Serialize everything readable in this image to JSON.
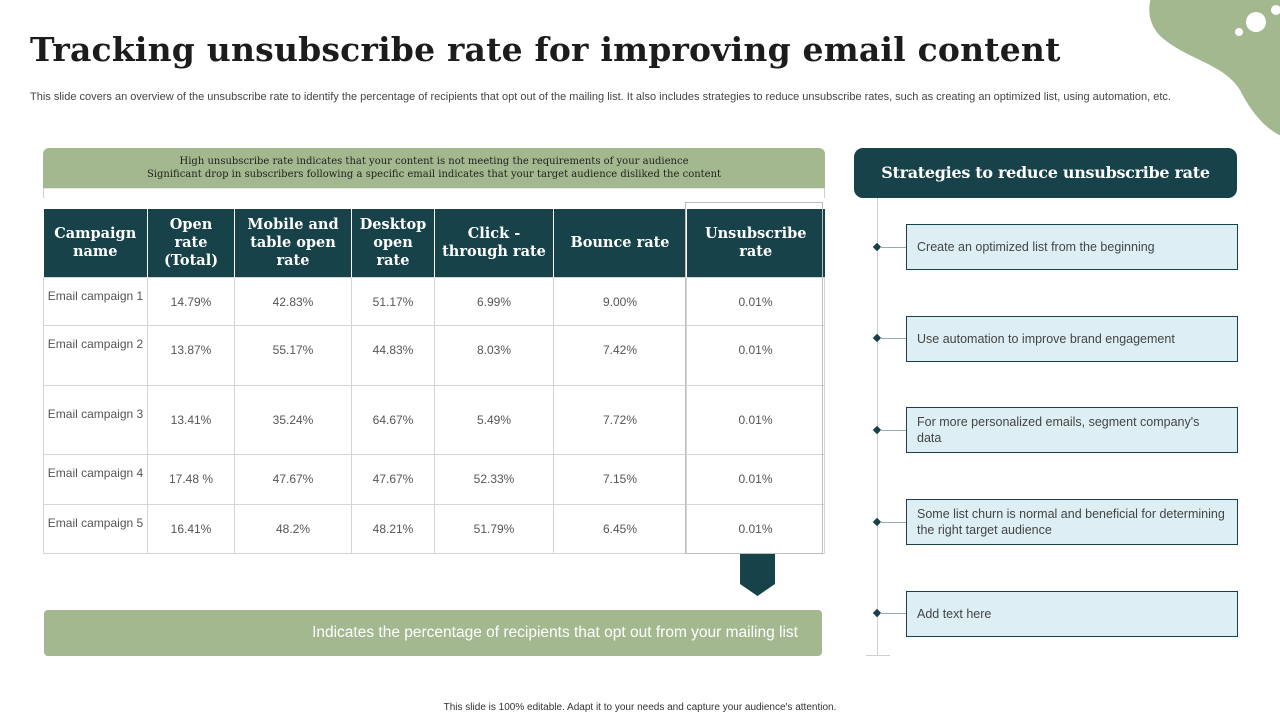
{
  "title": "Tracking unsubscribe rate for improving email content",
  "subtitle": "This slide covers an overview of the unsubscribe rate to identify the percentage of recipients that opt out of the mailing list. It also includes strategies to reduce unsubscribe rates, such as creating an optimized list, using automation, etc.",
  "top_banner": {
    "line1": "High unsubscribe rate indicates that your content is not meeting the requirements of your audience",
    "line2": "Significant drop in subscribers following a specific email indicates that your target audience disliked the content"
  },
  "table": {
    "headers": [
      "Campaign name",
      "Open rate (Total)",
      "Mobile and table open rate",
      "Desktop open rate",
      "Click -through rate",
      "Bounce rate",
      "Unsubscribe rate"
    ],
    "rows": [
      [
        "Email campaign 1",
        "14.79%",
        "42.83%",
        "51.17%",
        "6.99%",
        "9.00%",
        "0.01%"
      ],
      [
        "Email campaign 2",
        "13.87%",
        "55.17%",
        "44.83%",
        "8.03%",
        "7.42%",
        "0.01%"
      ],
      [
        "Email campaign 3",
        "13.41%",
        "35.24%",
        "64.67%",
        "5.49%",
        "7.72%",
        "0.01%"
      ],
      [
        "Email campaign 4",
        "17.48 %",
        "47.67%",
        "47.67%",
        "52.33%",
        "7.15%",
        "0.01%"
      ],
      [
        "Email campaign 5",
        "16.41%",
        "48.2%",
        "48.21%",
        "51.79%",
        "6.45%",
        "0.01%"
      ]
    ]
  },
  "bottom_banner": "Indicates the percentage of recipients that opt out from your mailing list",
  "strategies": {
    "header": "Strategies to reduce unsubscribe rate",
    "items": [
      "Create an optimized list from the beginning",
      "Use automation to improve  brand engagement",
      "For more personalized emails, segment company's data",
      "Some list churn is normal and beneficial for determining the right target audience",
      "Add text here"
    ]
  },
  "footer": "This slide is 100% editable.  Adapt it to your needs and capture your audience's attention.",
  "colors": {
    "dark_teal": "#17424a",
    "sage_green": "#a3b88f",
    "light_blue": "#ddeff4"
  }
}
